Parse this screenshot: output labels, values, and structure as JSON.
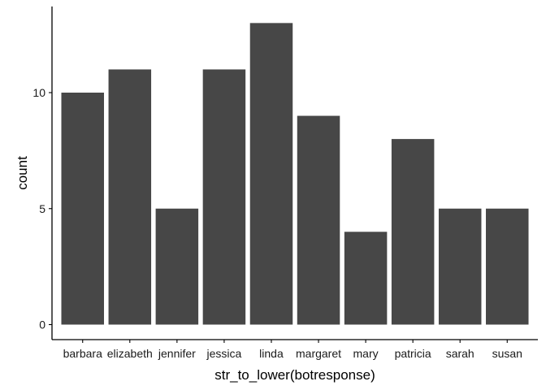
{
  "chart_data": {
    "type": "bar",
    "title": "",
    "xlabel": "str_to_lower(botresponse)",
    "ylabel": "count",
    "categories": [
      "barbara",
      "elizabeth",
      "jennifer",
      "jessica",
      "linda",
      "margaret",
      "mary",
      "patricia",
      "sarah",
      "susan"
    ],
    "values": [
      10,
      11,
      5,
      11,
      13,
      9,
      4,
      8,
      5,
      5
    ],
    "ylim": [
      0,
      13.65
    ],
    "yticks": [
      0,
      5,
      10
    ],
    "bar_color": "#474747",
    "axis_color": "#000000",
    "grid": false,
    "legend": "none"
  }
}
